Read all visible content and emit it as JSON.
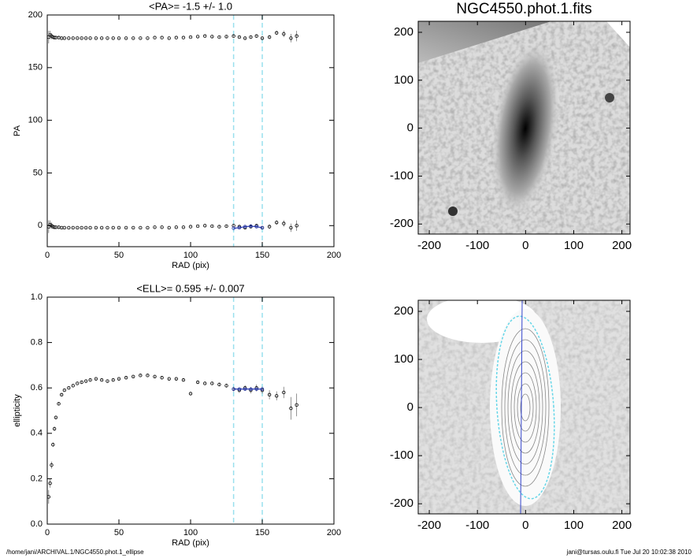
{
  "chart_data": [
    {
      "type": "scatter",
      "title": "<PA>=  -1.5 +/-   1.0",
      "xlabel": "RAD (pix)",
      "ylabel": "PA",
      "xlim": [
        0,
        200
      ],
      "ylim": [
        -20,
        200
      ],
      "xticks": [
        0,
        50,
        100,
        150,
        200
      ],
      "yticks": [
        0,
        50,
        100,
        150,
        200
      ],
      "vlines": [
        130,
        150
      ],
      "vline_color": "#99e0ee",
      "series": [
        {
          "color": "#000000",
          "x": [
            1,
            2,
            3,
            4,
            5,
            6,
            8,
            10,
            12,
            15,
            18,
            21,
            24,
            27,
            30,
            34,
            38,
            42,
            46,
            50,
            55,
            60,
            65,
            70,
            75,
            80,
            85,
            90,
            95,
            100,
            105,
            110,
            115,
            120,
            125,
            130,
            134,
            138,
            142,
            146,
            150,
            155,
            160,
            165,
            170,
            174
          ],
          "values": [
            179,
            181,
            180,
            179,
            178.5,
            178.5,
            178.5,
            178,
            178,
            178,
            178,
            178,
            178,
            178,
            178,
            178,
            178,
            178,
            178,
            178,
            178,
            178,
            178,
            178,
            178.5,
            178.5,
            178,
            178.5,
            178.5,
            179,
            179.5,
            180,
            179.5,
            179,
            179.5,
            180,
            179,
            178,
            179,
            180,
            178,
            179,
            183,
            182,
            178,
            180
          ],
          "errors": [
            6,
            4,
            3,
            2,
            1.5,
            1,
            1,
            0.8,
            0.6,
            0.5,
            0.5,
            0.5,
            0.5,
            0.5,
            0.5,
            0.5,
            0.5,
            0.5,
            0.5,
            0.5,
            0.5,
            0.5,
            0.5,
            0.5,
            0.5,
            0.5,
            0.5,
            0.5,
            0.5,
            0.6,
            0.6,
            0.7,
            0.8,
            0.8,
            1,
            1,
            1,
            1.2,
            1.2,
            1.5,
            1.5,
            2,
            2,
            3,
            4,
            5
          ]
        },
        {
          "color": "#000000",
          "x": [
            1,
            2,
            3,
            4,
            5,
            6,
            8,
            10,
            12,
            15,
            18,
            21,
            24,
            27,
            30,
            34,
            38,
            42,
            46,
            50,
            55,
            60,
            65,
            70,
            75,
            80,
            85,
            90,
            95,
            100,
            105,
            110,
            115,
            120,
            125,
            130,
            134,
            138,
            142,
            146,
            150,
            155,
            160,
            165,
            170,
            174
          ],
          "values": [
            -1,
            1,
            0,
            -1,
            -1.5,
            -1.5,
            -1.5,
            -2,
            -2,
            -2,
            -2,
            -2,
            -2,
            -2,
            -2,
            -2,
            -2,
            -2,
            -2,
            -2,
            -2,
            -2,
            -2,
            -2,
            -1.5,
            -1.5,
            -2,
            -1.5,
            -1.5,
            -1,
            -0.5,
            0,
            -0.5,
            -1,
            -0.5,
            0,
            -1,
            -2,
            -1,
            0,
            -2,
            -1,
            3,
            2,
            -2,
            0
          ],
          "errors": [
            6,
            4,
            3,
            2,
            1.5,
            1,
            1,
            0.8,
            0.6,
            0.5,
            0.5,
            0.5,
            0.5,
            0.5,
            0.5,
            0.5,
            0.5,
            0.5,
            0.5,
            0.5,
            0.5,
            0.5,
            0.5,
            0.5,
            0.5,
            0.5,
            0.5,
            0.5,
            0.5,
            0.6,
            0.6,
            0.7,
            0.8,
            0.8,
            1,
            1,
            1,
            1.2,
            1.2,
            1.5,
            1.5,
            2,
            2,
            3,
            4,
            5
          ]
        },
        {
          "color": "#2233aa",
          "line": true,
          "x": [
            130,
            134,
            138,
            142,
            146,
            150
          ],
          "values": [
            -2.5,
            -2,
            -1,
            -0.5,
            -1,
            -2
          ]
        }
      ]
    },
    {
      "type": "scatter",
      "title": "<ELL>= 0.595 +/-  0.007",
      "xlabel": "RAD (pix)",
      "ylabel": "ellipticity",
      "xlim": [
        0,
        200
      ],
      "ylim": [
        0,
        1
      ],
      "xticks": [
        0,
        50,
        100,
        150,
        200
      ],
      "yticks": [
        {
          "value": 0,
          "label": "0.0"
        },
        0.2,
        0.4,
        0.6,
        0.8,
        {
          "value": 1,
          "label": "1.0"
        }
      ],
      "vlines": [
        130,
        150
      ],
      "vline_color": "#99e0ee",
      "series": [
        {
          "color": "#000000",
          "x": [
            1,
            2,
            3,
            4,
            5,
            6,
            8,
            10,
            12,
            15,
            18,
            21,
            24,
            27,
            30,
            34,
            38,
            42,
            46,
            50,
            55,
            60,
            65,
            70,
            75,
            80,
            85,
            90,
            95,
            100,
            105,
            110,
            115,
            120,
            125,
            130,
            134,
            138,
            142,
            146,
            150,
            155,
            160,
            165,
            170,
            174
          ],
          "values": [
            0.12,
            0.18,
            0.26,
            0.35,
            0.42,
            0.47,
            0.53,
            0.57,
            0.59,
            0.6,
            0.61,
            0.62,
            0.625,
            0.63,
            0.635,
            0.64,
            0.635,
            0.63,
            0.635,
            0.64,
            0.645,
            0.65,
            0.655,
            0.655,
            0.65,
            0.645,
            0.64,
            0.64,
            0.635,
            0.575,
            0.625,
            0.62,
            0.62,
            0.615,
            0.61,
            0.595,
            0.59,
            0.6,
            0.59,
            0.6,
            0.59,
            0.57,
            0.565,
            0.58,
            0.51,
            0.525
          ],
          "errors": [
            0.03,
            0.02,
            0.015,
            0.01,
            0.01,
            0.008,
            0.006,
            0.005,
            0.005,
            0.004,
            0.004,
            0.004,
            0.004,
            0.004,
            0.004,
            0.004,
            0.004,
            0.004,
            0.004,
            0.004,
            0.004,
            0.004,
            0.004,
            0.004,
            0.004,
            0.004,
            0.004,
            0.005,
            0.005,
            0.005,
            0.006,
            0.006,
            0.007,
            0.008,
            0.009,
            0.01,
            0.012,
            0.012,
            0.014,
            0.015,
            0.015,
            0.02,
            0.02,
            0.025,
            0.05,
            0.05
          ]
        },
        {
          "color": "#2233aa",
          "line": true,
          "x": [
            130,
            134,
            138,
            142,
            146,
            150
          ],
          "values": [
            0.595,
            0.595,
            0.595,
            0.595,
            0.595,
            0.595
          ]
        }
      ]
    },
    {
      "type": "image",
      "title": "NGC4550.phot.1.fits",
      "xlim": [
        -223,
        217
      ],
      "ylim": [
        -221,
        223
      ],
      "xticks": [
        -200,
        -100,
        0,
        100,
        200
      ],
      "yticks": [
        -200,
        -100,
        0,
        100,
        200
      ]
    },
    {
      "type": "image",
      "xlim": [
        -223,
        217
      ],
      "ylim": [
        -221,
        223
      ],
      "xticks": [
        -200,
        -100,
        0,
        100,
        200
      ],
      "yticks": [
        -200,
        -100,
        0,
        100,
        200
      ]
    }
  ],
  "footer": {
    "left": "/home/jani/ARCHIVAL.1/NGC4550.phot.1_ellipse",
    "right": "jani@tursas.oulu.fi  Tue Jul 20 10:02:38 2010"
  }
}
